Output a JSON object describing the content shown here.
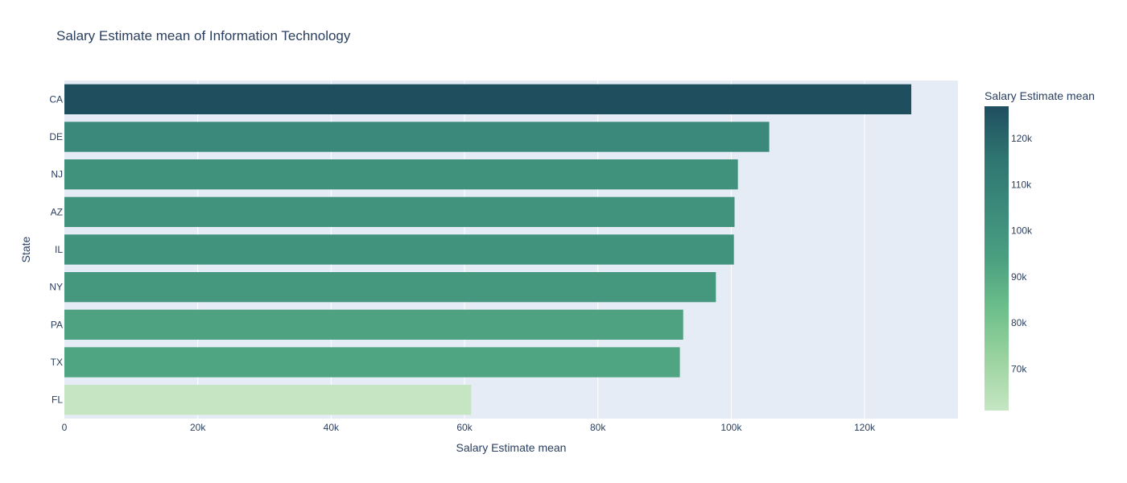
{
  "chart_data": {
    "type": "bar",
    "orientation": "horizontal",
    "title": "Salary Estimate mean of Information Technology",
    "xlabel": "Salary Estimate mean",
    "ylabel": "State",
    "categories": [
      "CA",
      "DE",
      "NJ",
      "AZ",
      "IL",
      "NY",
      "PA",
      "TX",
      "FL"
    ],
    "values": [
      127000,
      105700,
      101000,
      100500,
      100400,
      97700,
      92800,
      92300,
      61000
    ],
    "xlim": [
      0,
      134000
    ],
    "x_ticks": [
      0,
      20000,
      40000,
      60000,
      80000,
      100000,
      120000
    ],
    "x_tick_labels": [
      "0",
      "20k",
      "40k",
      "60k",
      "80k",
      "100k",
      "120k"
    ],
    "grid": true,
    "colorbar": {
      "title": "Salary Estimate mean",
      "min": 61000,
      "max": 127000,
      "ticks": [
        70000,
        80000,
        90000,
        100000,
        110000,
        120000
      ],
      "tick_labels": [
        "70k",
        "80k",
        "90k",
        "100k",
        "110k",
        "120k"
      ],
      "colors": [
        "#c6e6c3",
        "#9bd3a0",
        "#6dbf8b",
        "#4a9f80",
        "#3b8a7b",
        "#2e7470",
        "#1f4e5f"
      ],
      "placement": "right"
    }
  }
}
